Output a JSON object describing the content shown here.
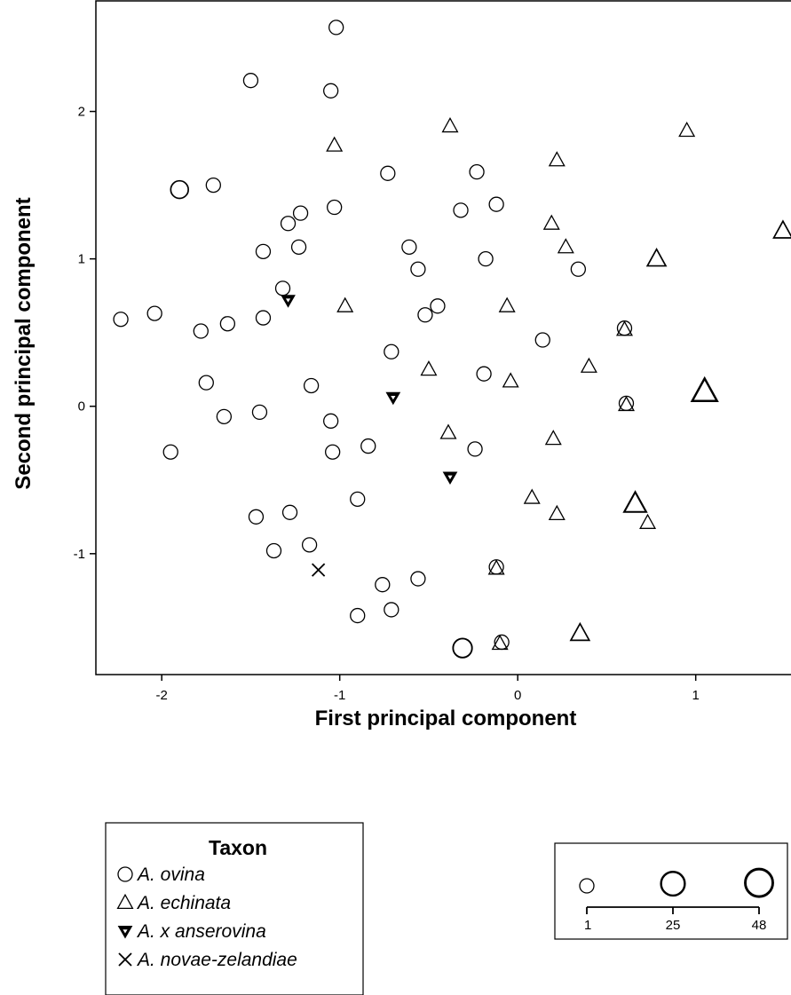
{
  "chart_data": {
    "type": "scatter",
    "xlabel": "First principal component",
    "ylabel": "Second principal component",
    "xlim": [
      -2.37,
      1.62
    ],
    "ylim": [
      -1.82,
      2.75
    ],
    "x_ticks": [
      -2,
      -1,
      0,
      1
    ],
    "y_ticks": [
      -1,
      0,
      1,
      2
    ],
    "x_tick_labels": [
      "-2",
      "-1",
      "0",
      "1"
    ],
    "y_tick_labels": [
      "-1",
      "0",
      "1",
      "2"
    ],
    "grid": false,
    "series": [
      {
        "name": "A. ovina",
        "marker": "circle",
        "points": [
          {
            "x": -1.02,
            "y": 2.57,
            "n": 1
          },
          {
            "x": -1.5,
            "y": 2.21,
            "n": 1
          },
          {
            "x": -1.05,
            "y": 2.14,
            "n": 1
          },
          {
            "x": -1.9,
            "y": 1.47,
            "n": 4
          },
          {
            "x": -1.71,
            "y": 1.5,
            "n": 1
          },
          {
            "x": -0.73,
            "y": 1.58,
            "n": 1
          },
          {
            "x": -0.23,
            "y": 1.59,
            "n": 1
          },
          {
            "x": -1.03,
            "y": 1.35,
            "n": 1
          },
          {
            "x": -1.22,
            "y": 1.31,
            "n": 1
          },
          {
            "x": -1.29,
            "y": 1.24,
            "n": 1
          },
          {
            "x": -0.32,
            "y": 1.33,
            "n": 1
          },
          {
            "x": -0.12,
            "y": 1.37,
            "n": 1
          },
          {
            "x": -1.23,
            "y": 1.08,
            "n": 1
          },
          {
            "x": -0.61,
            "y": 1.08,
            "n": 1
          },
          {
            "x": -1.43,
            "y": 1.05,
            "n": 1
          },
          {
            "x": -0.18,
            "y": 1.0,
            "n": 1
          },
          {
            "x": -0.56,
            "y": 0.93,
            "n": 1
          },
          {
            "x": 0.34,
            "y": 0.93,
            "n": 1
          },
          {
            "x": -1.32,
            "y": 0.8,
            "n": 1
          },
          {
            "x": -0.45,
            "y": 0.68,
            "n": 1
          },
          {
            "x": -2.23,
            "y": 0.59,
            "n": 1
          },
          {
            "x": -2.04,
            "y": 0.63,
            "n": 1
          },
          {
            "x": -1.43,
            "y": 0.6,
            "n": 1
          },
          {
            "x": -1.63,
            "y": 0.56,
            "n": 1
          },
          {
            "x": -1.78,
            "y": 0.51,
            "n": 1
          },
          {
            "x": -0.52,
            "y": 0.62,
            "n": 1
          },
          {
            "x": 0.6,
            "y": 0.53,
            "n": 1
          },
          {
            "x": 0.14,
            "y": 0.45,
            "n": 1
          },
          {
            "x": -0.71,
            "y": 0.37,
            "n": 1
          },
          {
            "x": -0.19,
            "y": 0.22,
            "n": 1
          },
          {
            "x": -1.75,
            "y": 0.16,
            "n": 1
          },
          {
            "x": -1.16,
            "y": 0.14,
            "n": 1
          },
          {
            "x": 0.61,
            "y": 0.02,
            "n": 1
          },
          {
            "x": -1.45,
            "y": -0.04,
            "n": 1
          },
          {
            "x": -1.65,
            "y": -0.07,
            "n": 1
          },
          {
            "x": -1.05,
            "y": -0.1,
            "n": 1
          },
          {
            "x": -1.95,
            "y": -0.31,
            "n": 1
          },
          {
            "x": -1.04,
            "y": -0.31,
            "n": 1
          },
          {
            "x": -0.84,
            "y": -0.27,
            "n": 1
          },
          {
            "x": -0.24,
            "y": -0.29,
            "n": 1
          },
          {
            "x": -0.9,
            "y": -0.63,
            "n": 1
          },
          {
            "x": -1.28,
            "y": -0.72,
            "n": 1
          },
          {
            "x": -1.47,
            "y": -0.75,
            "n": 1
          },
          {
            "x": -1.37,
            "y": -0.98,
            "n": 1
          },
          {
            "x": -1.17,
            "y": -0.94,
            "n": 1
          },
          {
            "x": -0.12,
            "y": -1.09,
            "n": 1
          },
          {
            "x": -0.56,
            "y": -1.17,
            "n": 1
          },
          {
            "x": -0.76,
            "y": -1.21,
            "n": 1
          },
          {
            "x": -0.71,
            "y": -1.38,
            "n": 1
          },
          {
            "x": -0.9,
            "y": -1.42,
            "n": 1
          },
          {
            "x": -0.09,
            "y": -1.6,
            "n": 1
          },
          {
            "x": -0.31,
            "y": -1.64,
            "n": 7
          }
        ]
      },
      {
        "name": "A. echinata",
        "marker": "triangle",
        "points": [
          {
            "x": -0.38,
            "y": 1.9,
            "n": 1
          },
          {
            "x": 0.95,
            "y": 1.87,
            "n": 1
          },
          {
            "x": -1.03,
            "y": 1.77,
            "n": 1
          },
          {
            "x": 0.22,
            "y": 1.67,
            "n": 1
          },
          {
            "x": 1.49,
            "y": 1.19,
            "n": 4
          },
          {
            "x": 0.19,
            "y": 1.24,
            "n": 1
          },
          {
            "x": 0.27,
            "y": 1.08,
            "n": 1
          },
          {
            "x": 0.78,
            "y": 1.0,
            "n": 4
          },
          {
            "x": -0.97,
            "y": 0.68,
            "n": 1
          },
          {
            "x": -0.06,
            "y": 0.68,
            "n": 1
          },
          {
            "x": 0.6,
            "y": 0.52,
            "n": 1
          },
          {
            "x": -0.5,
            "y": 0.25,
            "n": 1
          },
          {
            "x": 0.4,
            "y": 0.27,
            "n": 1
          },
          {
            "x": -0.04,
            "y": 0.17,
            "n": 1
          },
          {
            "x": 1.05,
            "y": 0.1,
            "n": 25
          },
          {
            "x": 0.61,
            "y": 0.01,
            "n": 1
          },
          {
            "x": -0.39,
            "y": -0.18,
            "n": 1
          },
          {
            "x": 0.2,
            "y": -0.22,
            "n": 1
          },
          {
            "x": 0.08,
            "y": -0.62,
            "n": 1
          },
          {
            "x": 0.66,
            "y": -0.66,
            "n": 13
          },
          {
            "x": 0.22,
            "y": -0.73,
            "n": 1
          },
          {
            "x": 0.73,
            "y": -0.79,
            "n": 1
          },
          {
            "x": -0.12,
            "y": -1.1,
            "n": 1
          },
          {
            "x": 0.35,
            "y": -1.54,
            "n": 4
          },
          {
            "x": -0.1,
            "y": -1.61,
            "n": 1
          }
        ]
      },
      {
        "name": "A. x anserovina",
        "marker": "triangle-down-filled",
        "points": [
          {
            "x": -1.29,
            "y": 0.72,
            "n": 1
          },
          {
            "x": -0.7,
            "y": 0.06,
            "n": 1
          },
          {
            "x": -0.38,
            "y": -0.48,
            "n": 1
          }
        ]
      },
      {
        "name": "A. novae-zelandiae",
        "marker": "x",
        "points": [
          {
            "x": -1.12,
            "y": -1.11,
            "n": 1
          }
        ]
      }
    ],
    "legend": {
      "title": "Taxon",
      "position": "bottom-left",
      "entries": [
        {
          "symbol": "○",
          "label": "A. ovina"
        },
        {
          "symbol": "△",
          "label": "A. echinata"
        },
        {
          "symbol": "▼",
          "label": "A. x anserovina"
        },
        {
          "symbol": "×",
          "label": "A. novae-zelandiae"
        }
      ]
    },
    "size_legend": {
      "position": "bottom-right",
      "values": [
        1,
        25,
        48
      ],
      "labels": [
        "1",
        "25",
        "48"
      ]
    }
  }
}
